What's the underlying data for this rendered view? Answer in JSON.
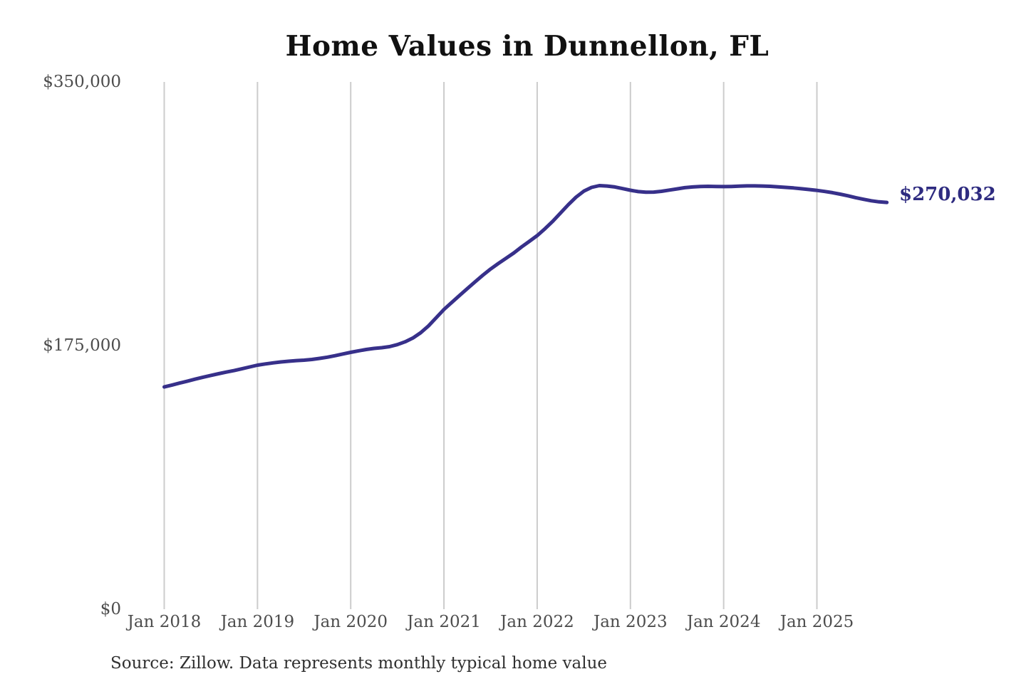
{
  "title": "Home Values in Dunnellon, FL",
  "source_note": "Source: Zillow. Data represents monthly typical home value",
  "end_label": "$270,032",
  "colors": {
    "line": "#37308a",
    "end_label": "#2e2b80",
    "grid": "#cccccc",
    "axis_text": "#4d4d4d",
    "title_text": "#111111",
    "source_text": "#303030",
    "background": "#ffffff"
  },
  "chart_data": {
    "type": "line",
    "title": "Home Values in Dunnellon, FL",
    "xlabel": "",
    "ylabel": "",
    "ylim": [
      0,
      350000
    ],
    "grid": "vertical-only",
    "legend": "none",
    "x_tick_labels": [
      "Jan 2018",
      "Jan 2019",
      "Jan 2020",
      "Jan 2021",
      "Jan 2022",
      "Jan 2023",
      "Jan 2024",
      "Jan 2025"
    ],
    "y_tick_labels": [
      "$350,000",
      "$175,000",
      "$0"
    ],
    "y_tick_values": [
      350000,
      175000,
      0
    ],
    "annotation": {
      "text": "$270,032",
      "value": 270032,
      "position": "end-of-line"
    },
    "series": [
      {
        "name": "Monthly typical home value",
        "x": [
          "2018-01",
          "2018-02",
          "2018-03",
          "2018-04",
          "2018-05",
          "2018-06",
          "2018-07",
          "2018-08",
          "2018-09",
          "2018-10",
          "2018-11",
          "2018-12",
          "2019-01",
          "2019-02",
          "2019-03",
          "2019-04",
          "2019-05",
          "2019-06",
          "2019-07",
          "2019-08",
          "2019-09",
          "2019-10",
          "2019-11",
          "2019-12",
          "2020-01",
          "2020-02",
          "2020-03",
          "2020-04",
          "2020-05",
          "2020-06",
          "2020-07",
          "2020-08",
          "2020-09",
          "2020-10",
          "2020-11",
          "2020-12",
          "2021-01",
          "2021-02",
          "2021-03",
          "2021-04",
          "2021-05",
          "2021-06",
          "2021-07",
          "2021-08",
          "2021-09",
          "2021-10",
          "2021-11",
          "2021-12",
          "2022-01",
          "2022-02",
          "2022-03",
          "2022-04",
          "2022-05",
          "2022-06",
          "2022-07",
          "2022-08",
          "2022-09",
          "2022-10",
          "2022-11",
          "2022-12",
          "2023-01",
          "2023-02",
          "2023-03",
          "2023-04",
          "2023-05",
          "2023-06",
          "2023-07",
          "2023-08",
          "2023-09",
          "2023-10",
          "2023-11",
          "2023-12",
          "2024-01",
          "2024-02",
          "2024-03",
          "2024-04",
          "2024-05",
          "2024-06",
          "2024-07",
          "2024-08",
          "2024-09",
          "2024-10",
          "2024-11",
          "2024-12",
          "2025-01",
          "2025-02",
          "2025-03",
          "2025-04",
          "2025-05",
          "2025-06",
          "2025-07",
          "2025-08",
          "2025-09",
          "2025-10"
        ],
        "values": [
          147500,
          148800,
          150100,
          151400,
          152700,
          154000,
          155200,
          156300,
          157400,
          158400,
          159600,
          160800,
          162000,
          162800,
          163500,
          164100,
          164600,
          165000,
          165300,
          165800,
          166500,
          167300,
          168300,
          169400,
          170500,
          171500,
          172400,
          173100,
          173600,
          174300,
          175600,
          177500,
          180000,
          183500,
          188000,
          193500,
          199000,
          203600,
          208200,
          212800,
          217300,
          221700,
          225800,
          229500,
          233000,
          236500,
          240500,
          244200,
          248000,
          252500,
          257500,
          263000,
          268500,
          273500,
          277500,
          280000,
          281200,
          280900,
          280300,
          279200,
          278100,
          277200,
          276800,
          276900,
          277400,
          278200,
          279000,
          279800,
          280300,
          280600,
          280700,
          280600,
          280500,
          280600,
          280800,
          281000,
          281000,
          280900,
          280700,
          280400,
          280000,
          279600,
          279100,
          278600,
          278000,
          277300,
          276500,
          275500,
          274400,
          273200,
          272100,
          271100,
          270400,
          270032
        ]
      }
    ]
  }
}
